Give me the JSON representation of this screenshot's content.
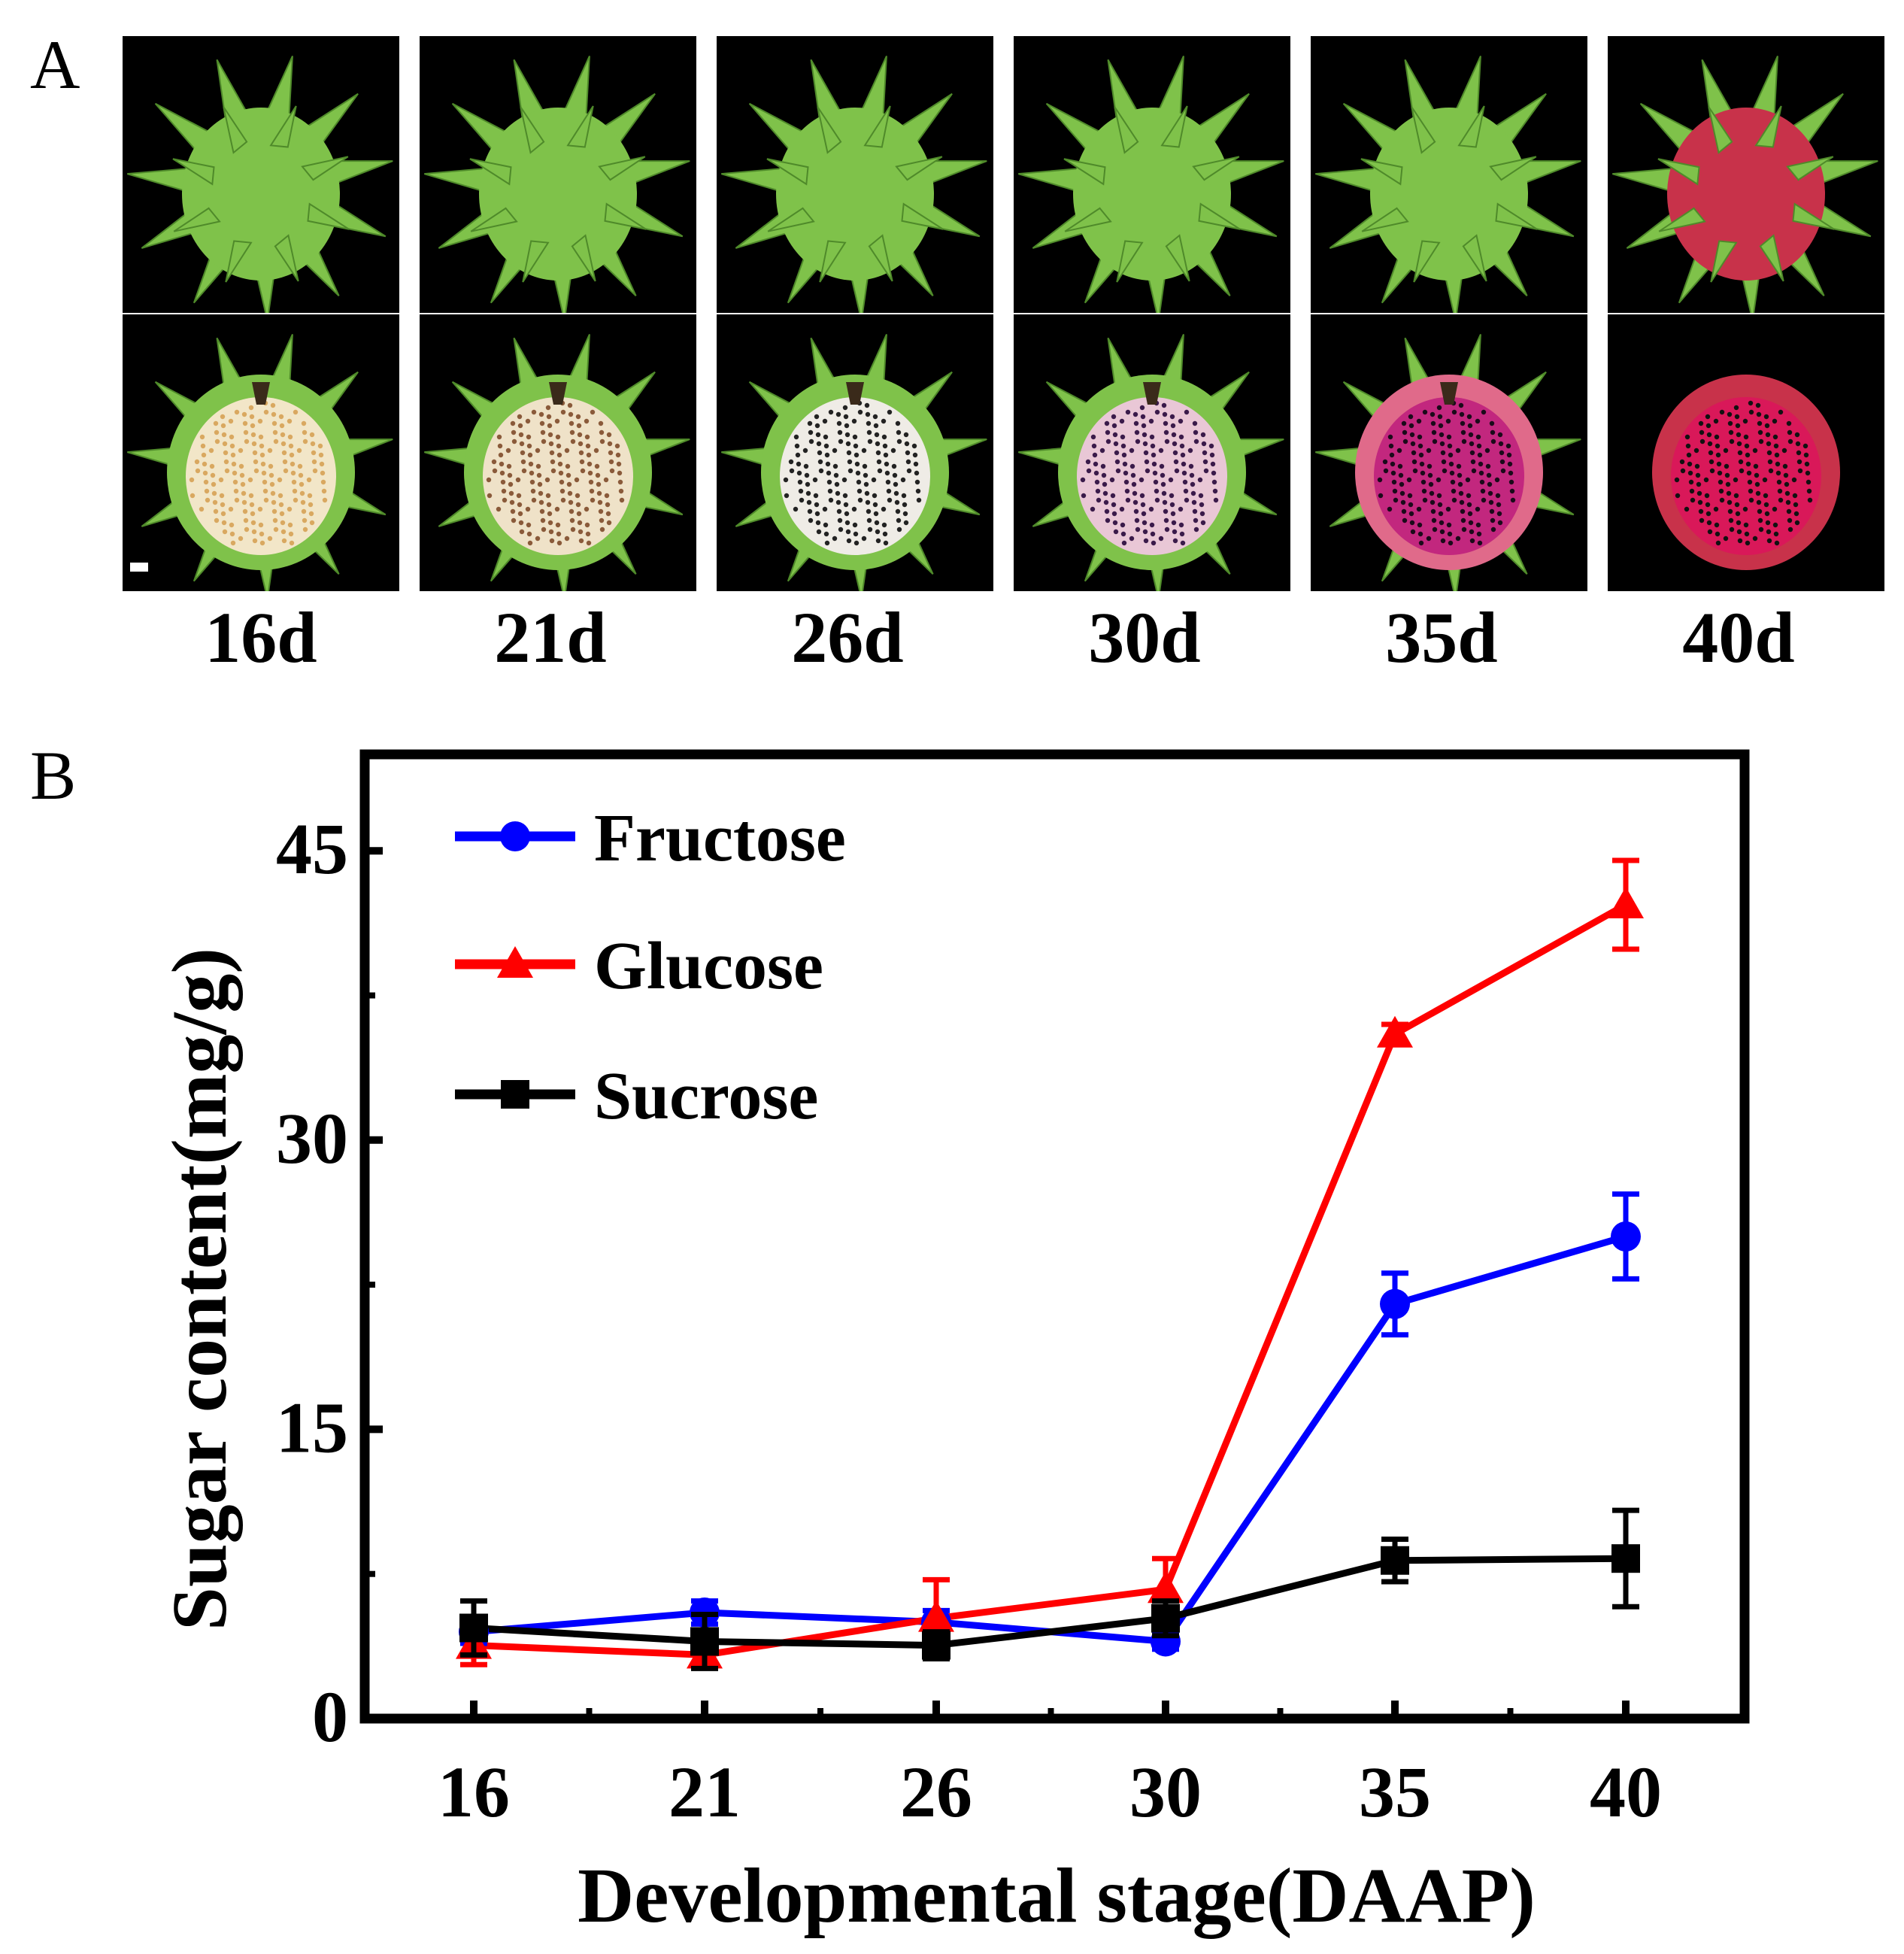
{
  "panel_a": {
    "label": "A",
    "stages": [
      "16d",
      "21d",
      "26d",
      "30d",
      "35d",
      "40d"
    ]
  },
  "panel_b": {
    "label": "B"
  },
  "colors": {
    "fructose": "#0000ff",
    "glucose": "#ff0000",
    "sucrose": "#000000",
    "green_bract": "#7fc24a",
    "red_peel": "#c8324a"
  },
  "chart_data": {
    "type": "line",
    "categories": [
      "16",
      "21",
      "26",
      "30",
      "35",
      "40"
    ],
    "xlabel": "Developmental stage(DAAP)",
    "ylabel": "Sugar content(mg/g)",
    "ylim": [
      0,
      50
    ],
    "yticks": [
      0,
      15,
      30,
      45
    ],
    "ytick_labels": [
      "0",
      "15",
      "30",
      "45"
    ],
    "legend_position": "top-left",
    "series": [
      {
        "name": "Fructose",
        "marker": "circle",
        "color": "#0000ff",
        "values": [
          4.5,
          5.5,
          5.0,
          4.0,
          21.5,
          25.0
        ],
        "errors": [
          0.6,
          0.6,
          0.6,
          0.4,
          1.6,
          2.2
        ]
      },
      {
        "name": "Glucose",
        "marker": "triangle",
        "color": "#ff0000",
        "values": [
          3.8,
          3.3,
          5.2,
          6.7,
          35.5,
          42.2
        ],
        "errors": [
          1.0,
          0.6,
          2.0,
          1.6,
          0.5,
          2.3
        ]
      },
      {
        "name": "Sucrose",
        "marker": "square",
        "color": "#000000",
        "values": [
          4.7,
          4.0,
          3.8,
          5.2,
          8.2,
          8.3
        ],
        "errors": [
          1.4,
          1.4,
          0.7,
          0.9,
          1.1,
          2.5
        ]
      }
    ]
  }
}
